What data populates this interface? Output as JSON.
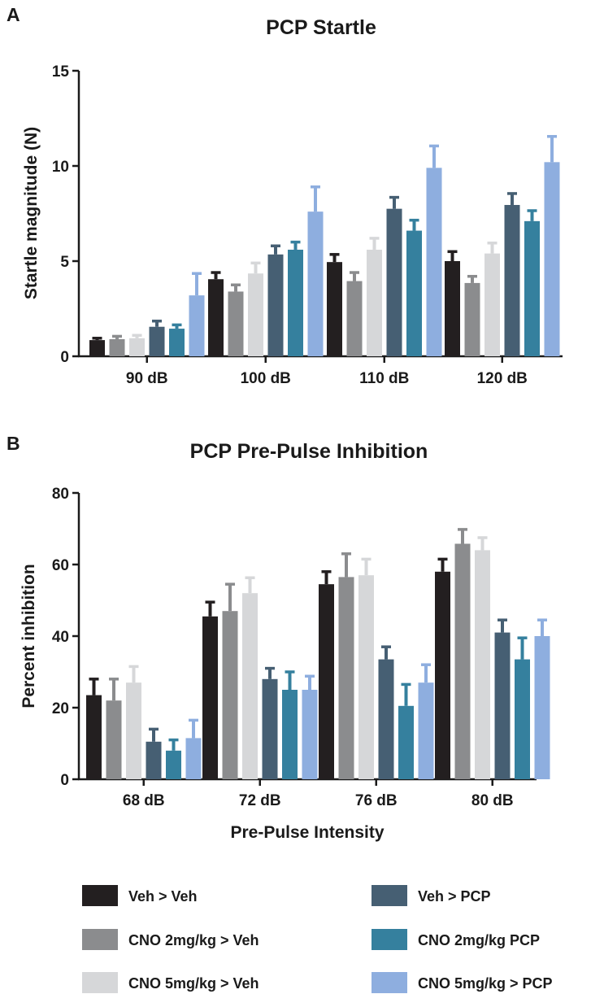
{
  "colors": {
    "veh_veh": "#231f20",
    "cno2_veh": "#8b8c8e",
    "cno5_veh": "#d6d7d9",
    "veh_pcp": "#465f73",
    "cno2_pcp": "#35809e",
    "cno5_pcp": "#8eaedf"
  },
  "legend": [
    {
      "key": "veh_veh",
      "label": "Veh > Veh"
    },
    {
      "key": "cno2_veh",
      "label": "CNO 2mg/kg > Veh"
    },
    {
      "key": "cno5_veh",
      "label": "CNO 5mg/kg > Veh"
    },
    {
      "key": "veh_pcp",
      "label": "Veh > PCP"
    },
    {
      "key": "cno2_pcp",
      "label": "CNO 2mg/kg PCP"
    },
    {
      "key": "cno5_pcp",
      "label": "CNO 5mg/kg > PCP"
    }
  ],
  "chart_data": [
    {
      "panel": "A",
      "type": "bar",
      "title": "PCP Startle",
      "xlabel": "",
      "ylabel": "Startle magnitude (N)",
      "ylim": [
        0,
        15
      ],
      "yticks": [
        0,
        5,
        10,
        15
      ],
      "categories": [
        "90 dB",
        "100 dB",
        "110 dB",
        "120 dB"
      ],
      "series": [
        {
          "key": "veh_veh",
          "values": [
            0.85,
            4.05,
            4.95,
            5.0
          ],
          "errors": [
            0.1,
            0.35,
            0.4,
            0.5
          ]
        },
        {
          "key": "cno2_veh",
          "values": [
            0.9,
            3.4,
            3.95,
            3.85
          ],
          "errors": [
            0.15,
            0.35,
            0.45,
            0.35
          ]
        },
        {
          "key": "cno5_veh",
          "values": [
            0.95,
            4.35,
            5.6,
            5.4
          ],
          "errors": [
            0.15,
            0.55,
            0.6,
            0.55
          ]
        },
        {
          "key": "veh_pcp",
          "values": [
            1.55,
            5.35,
            7.75,
            7.95
          ],
          "errors": [
            0.3,
            0.45,
            0.6,
            0.6
          ]
        },
        {
          "key": "cno2_pcp",
          "values": [
            1.45,
            5.6,
            6.6,
            7.1
          ],
          "errors": [
            0.2,
            0.4,
            0.55,
            0.55
          ]
        },
        {
          "key": "cno5_pcp",
          "values": [
            3.2,
            7.6,
            9.9,
            10.2
          ],
          "errors": [
            1.15,
            1.3,
            1.15,
            1.35
          ]
        }
      ],
      "grid": false,
      "legend_position": "bottom"
    },
    {
      "panel": "B",
      "type": "bar",
      "title": "PCP Pre-Pulse Inhibition",
      "xlabel": "Pre-Pulse Intensity",
      "ylabel": "Percent inhibition",
      "ylim": [
        0,
        80
      ],
      "yticks": [
        0,
        20,
        40,
        60,
        80
      ],
      "categories": [
        "68 dB",
        "72 dB",
        "76 dB",
        "80 dB"
      ],
      "series": [
        {
          "key": "veh_veh",
          "values": [
            23.5,
            45.5,
            54.5,
            58.0
          ],
          "errors": [
            4.5,
            4.0,
            3.5,
            3.5
          ]
        },
        {
          "key": "cno2_veh",
          "values": [
            22.0,
            47.0,
            56.5,
            65.8
          ],
          "errors": [
            6.0,
            7.5,
            6.5,
            4.0
          ]
        },
        {
          "key": "cno5_veh",
          "values": [
            27.0,
            52.0,
            57.0,
            64.0
          ],
          "errors": [
            4.5,
            4.3,
            4.5,
            3.5
          ]
        },
        {
          "key": "veh_pcp",
          "values": [
            10.5,
            28.0,
            33.5,
            41.0
          ],
          "errors": [
            3.5,
            3.0,
            3.5,
            3.5
          ]
        },
        {
          "key": "cno2_pcp",
          "values": [
            8.0,
            25.0,
            20.5,
            33.5
          ],
          "errors": [
            3.0,
            5.0,
            6.0,
            6.0
          ]
        },
        {
          "key": "cno5_pcp",
          "values": [
            11.5,
            25.0,
            27.0,
            40.0
          ],
          "errors": [
            5.0,
            3.8,
            5.0,
            4.5
          ]
        }
      ],
      "grid": false,
      "legend_position": "bottom"
    }
  ]
}
